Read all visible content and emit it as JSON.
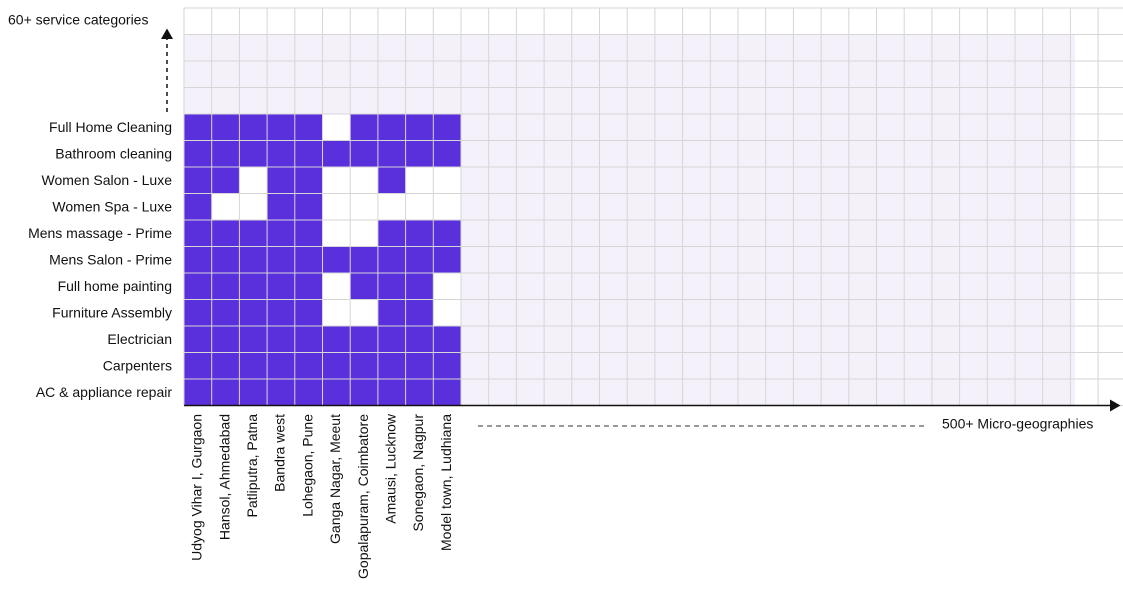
{
  "chart_data": {
    "type": "heatmap",
    "y_label": "60+ service categories",
    "x_label": "500+ Micro-geographies",
    "color": "#5a2fdc",
    "empty_color": "#ffffff",
    "background_color": "#f4f1fb",
    "x_categories": [
      "Udyog Vihar I, Gurgaon",
      "Hansol, Ahmedabad",
      "Patliputra, Patna",
      "Bandra west",
      "Lohegaon, Pune",
      "Ganga Nagar, Meeut",
      "Gopalapuram, Coimbatore",
      "Amausi, Lucknow",
      "Sonegaon, Nagpur",
      "Model town, Ludhiana"
    ],
    "y_categories": [
      "Full Home Cleaning",
      "Bathroom cleaning",
      "Women Salon - Luxe",
      "Women Spa - Luxe",
      "Mens massage - Prime",
      "Mens Salon - Prime",
      "Full home painting",
      "Furniture Assembly",
      "Electrician",
      "Carpenters",
      "AC & appliance repair"
    ],
    "values": [
      [
        1,
        1,
        1,
        1,
        1,
        0,
        1,
        1,
        1,
        1
      ],
      [
        1,
        1,
        1,
        1,
        1,
        1,
        1,
        1,
        1,
        1
      ],
      [
        1,
        1,
        0,
        1,
        1,
        0,
        0,
        1,
        0,
        0
      ],
      [
        1,
        0,
        0,
        1,
        1,
        0,
        0,
        0,
        0,
        0
      ],
      [
        1,
        1,
        1,
        1,
        1,
        0,
        0,
        1,
        1,
        1
      ],
      [
        1,
        1,
        1,
        1,
        1,
        1,
        1,
        1,
        1,
        1
      ],
      [
        1,
        1,
        1,
        1,
        1,
        0,
        1,
        1,
        1,
        0
      ],
      [
        1,
        1,
        1,
        1,
        1,
        0,
        0,
        1,
        1,
        0
      ],
      [
        1,
        1,
        1,
        1,
        1,
        1,
        1,
        1,
        1,
        1
      ],
      [
        1,
        1,
        1,
        1,
        1,
        1,
        1,
        1,
        1,
        1
      ],
      [
        1,
        1,
        1,
        1,
        1,
        1,
        1,
        1,
        1,
        1
      ]
    ]
  }
}
